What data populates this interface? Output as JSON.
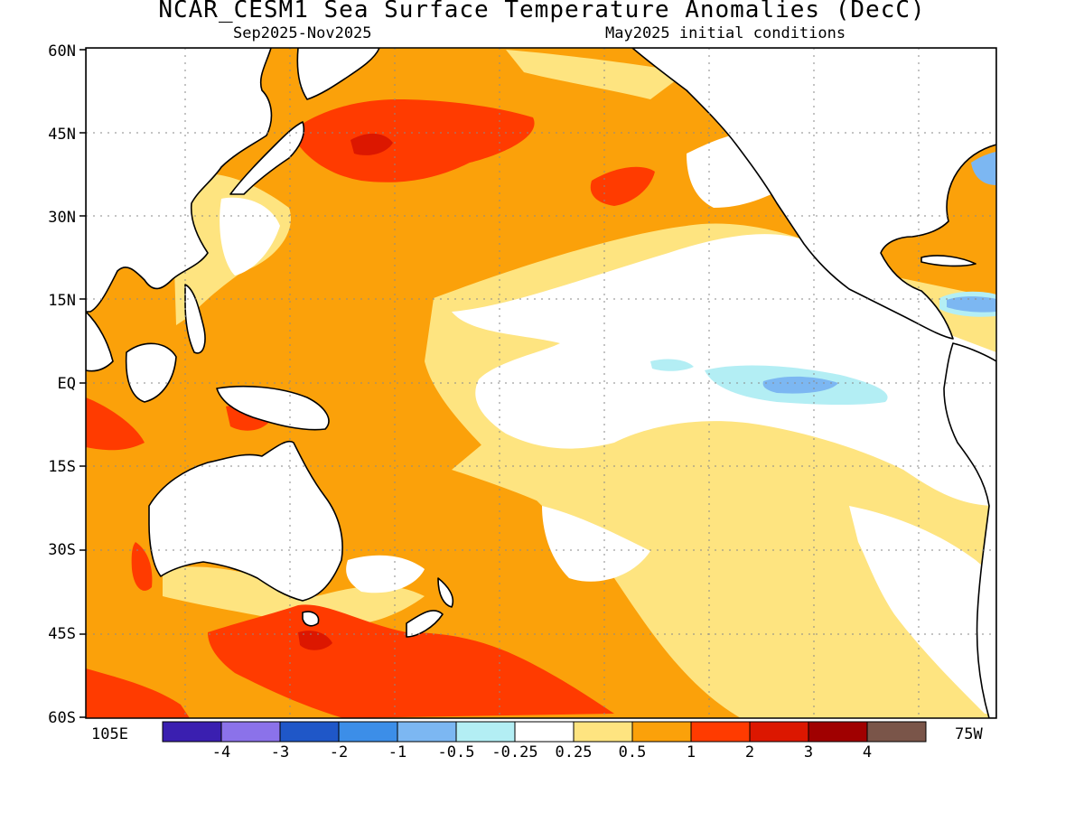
{
  "title": "NCAR_CESM1 Sea Surface Temperature Anomalies (DecC)",
  "subtitle_left": "Sep2025-Nov2025",
  "subtitle_right": "May2025 initial conditions",
  "lat_labels": [
    "60N",
    "45N",
    "30N",
    "15N",
    "EQ",
    "15S",
    "30S",
    "45S",
    "60S"
  ],
  "lon_label_left": "105E",
  "lon_label_right": "75W",
  "colorbar": {
    "colors": [
      "#3a1fb0",
      "#8b72ea",
      "#1f57c8",
      "#3c8ee8",
      "#7cb7f2",
      "#b3eef4",
      "#ffffff",
      "#fee480",
      "#fba10a",
      "#ff3b00",
      "#dc1700",
      "#a00000",
      "#7a5549"
    ],
    "tick_labels": [
      "-4",
      "-3",
      "-2",
      "-1",
      "-0.5",
      "-0.25",
      "0.25",
      "0.5",
      "1",
      "2",
      "3",
      "4"
    ]
  },
  "palette": {
    "land": "#ffffff",
    "neutral": "#ffffff",
    "warm_025": "#fee480",
    "warm_05": "#fba10a",
    "warm_1": "#ff3b00",
    "warm_2": "#dc1700",
    "cool_025": "#b3eef4",
    "cool_05": "#7cb7f2",
    "cool_1": "#3c8ee8"
  }
}
